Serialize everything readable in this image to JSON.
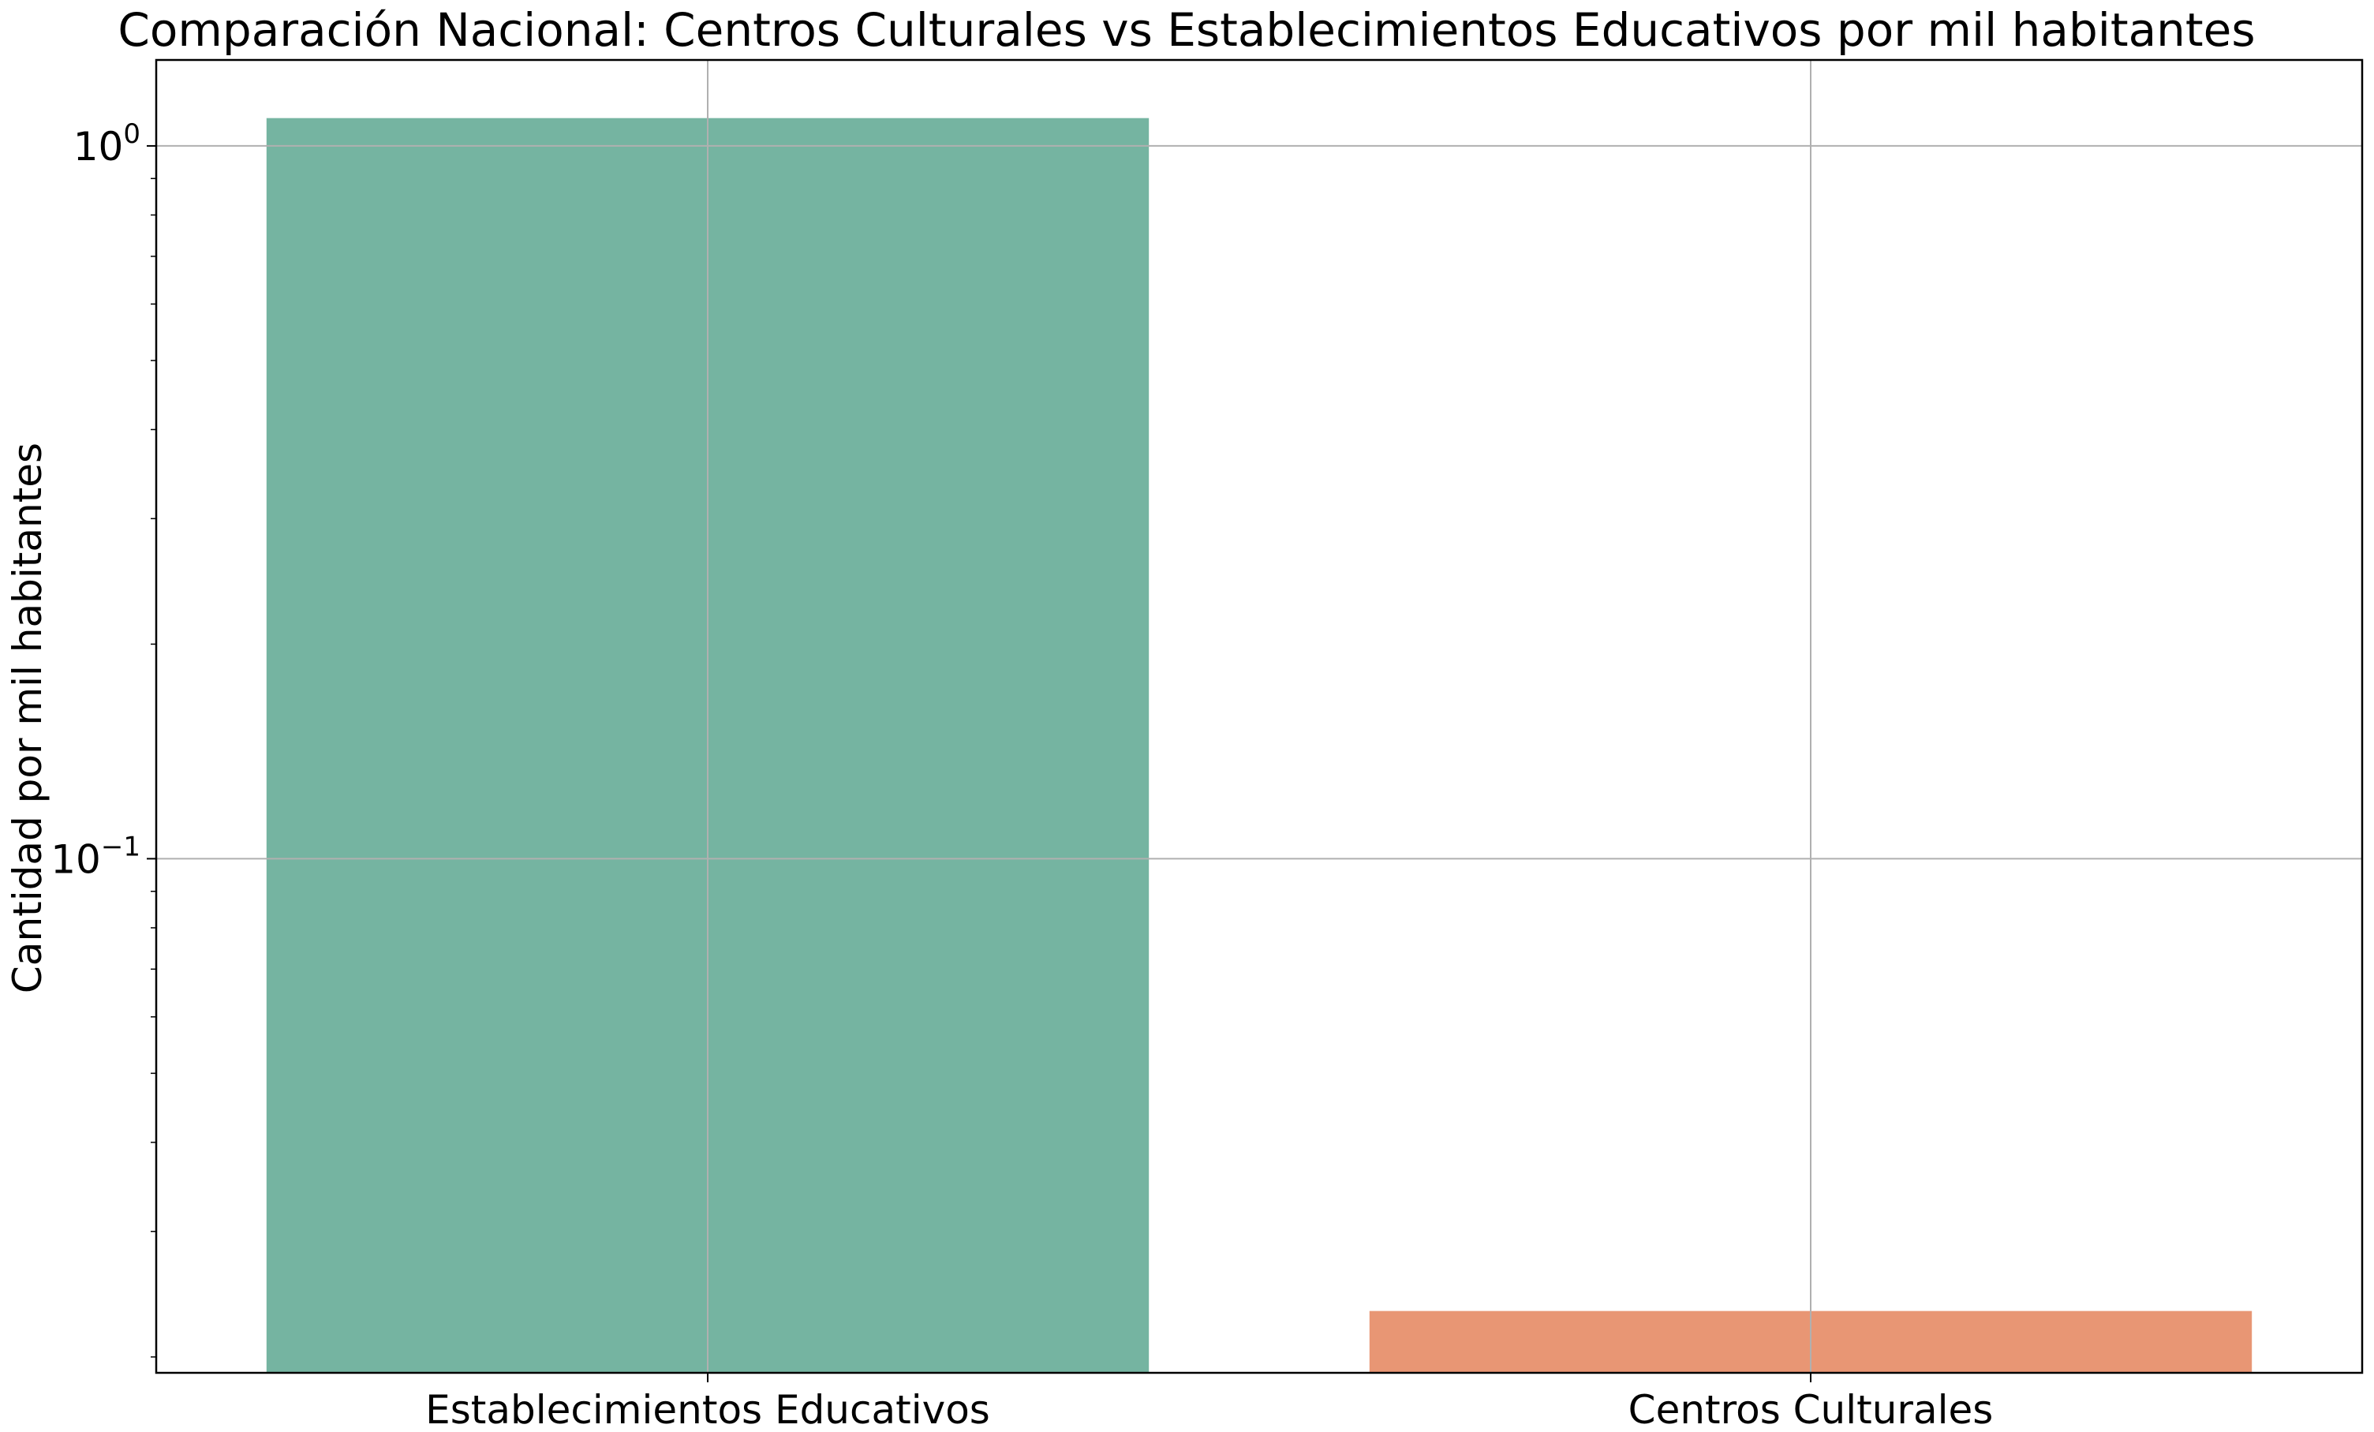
{
  "chart_data": {
    "type": "bar",
    "title": "Comparación Nacional: Centros Culturales vs Establecimientos Educativos por mil habitantes",
    "xlabel": "",
    "ylabel": "Cantidad por mil habitantes",
    "yscale": "log",
    "ylim": [
      0.019,
      1.32
    ],
    "y_ticks": [
      {
        "base": "10",
        "exp": "0",
        "value": 1
      },
      {
        "base": "10",
        "exp": "−1",
        "value": 0.1
      }
    ],
    "categories": [
      "Establecimientos Educativos",
      "Centros Culturales"
    ],
    "values": [
      1.094,
      0.0232
    ],
    "colors": [
      "#75b4a1",
      "#e89674"
    ],
    "grid": true,
    "legend": "none"
  }
}
